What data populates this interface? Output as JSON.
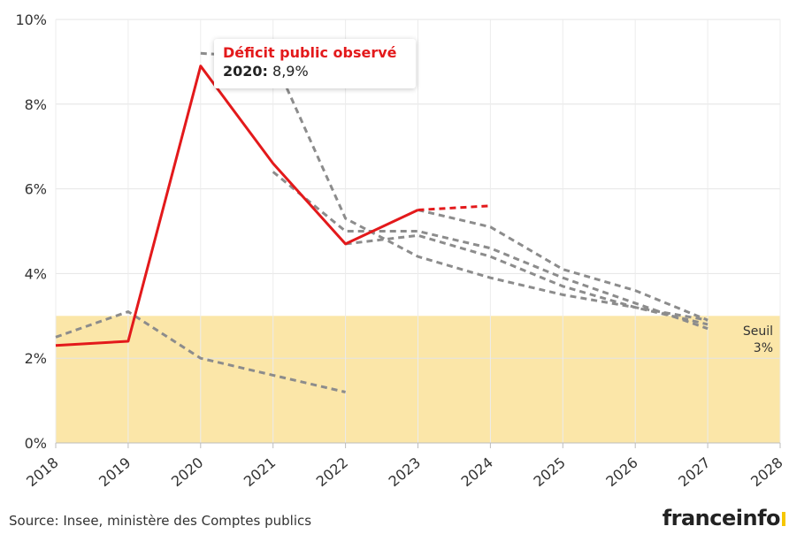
{
  "chart_data": {
    "type": "line",
    "x_ticks": [
      "2018",
      "2019",
      "2020",
      "2021",
      "2022",
      "2023",
      "2024",
      "2025",
      "2026",
      "2027",
      "2028"
    ],
    "y_ticks": [
      "0%",
      "2%",
      "4%",
      "6%",
      "8%",
      "10%"
    ],
    "ylim": [
      0,
      10
    ],
    "xlim": [
      2018,
      2028
    ],
    "grid": true,
    "threshold_band": {
      "from": 0,
      "to": 3,
      "color": "#fbe6a8",
      "label_line1": "Seuil",
      "label_line2": "3%"
    },
    "series": [
      {
        "name": "Déficit public observé",
        "style": "solid",
        "color": "#e3191b",
        "points": [
          [
            2018,
            2.3
          ],
          [
            2019,
            2.4
          ],
          [
            2020,
            8.9
          ],
          [
            2021,
            6.6
          ],
          [
            2022,
            4.7
          ],
          [
            2023,
            5.5
          ]
        ]
      },
      {
        "style": "dashed",
        "color": "#e3191b",
        "points": [
          [
            2023,
            5.5
          ],
          [
            2024,
            5.6
          ]
        ]
      },
      {
        "style": "dashed",
        "color": "#8c8c8c",
        "points": [
          [
            2018,
            2.5
          ],
          [
            2019,
            3.1
          ],
          [
            2020,
            2.0
          ],
          [
            2021,
            1.6
          ],
          [
            2022,
            1.2
          ]
        ]
      },
      {
        "style": "dashed",
        "color": "#8c8c8c",
        "points": [
          [
            2020,
            9.2
          ],
          [
            2021,
            9.1
          ],
          [
            2022,
            5.3
          ],
          [
            2023,
            4.4
          ],
          [
            2024,
            3.9
          ],
          [
            2025,
            3.5
          ],
          [
            2026,
            3.2
          ],
          [
            2027,
            2.9
          ]
        ]
      },
      {
        "style": "dashed",
        "color": "#8c8c8c",
        "points": [
          [
            2021,
            6.4
          ],
          [
            2022,
            5.0
          ],
          [
            2023,
            5.0
          ],
          [
            2024,
            4.6
          ],
          [
            2025,
            3.9
          ],
          [
            2026,
            3.3
          ],
          [
            2027,
            2.7
          ]
        ]
      },
      {
        "style": "dashed",
        "color": "#8c8c8c",
        "points": [
          [
            2022,
            4.7
          ],
          [
            2023,
            4.9
          ],
          [
            2024,
            4.4
          ],
          [
            2025,
            3.7
          ],
          [
            2026,
            3.2
          ],
          [
            2027,
            2.8
          ]
        ]
      },
      {
        "style": "dashed",
        "color": "#8c8c8c",
        "points": [
          [
            2023,
            5.5
          ],
          [
            2024,
            5.1
          ],
          [
            2025,
            4.1
          ],
          [
            2026,
            3.6
          ],
          [
            2027,
            2.9
          ]
        ]
      }
    ],
    "tooltip": {
      "title": "Déficit public observé",
      "year_label": "2020:",
      "value_label": "8,9%"
    }
  },
  "footer": {
    "source": "Source: Insee, ministère des Comptes publics",
    "logo_text": "franceinfo"
  }
}
